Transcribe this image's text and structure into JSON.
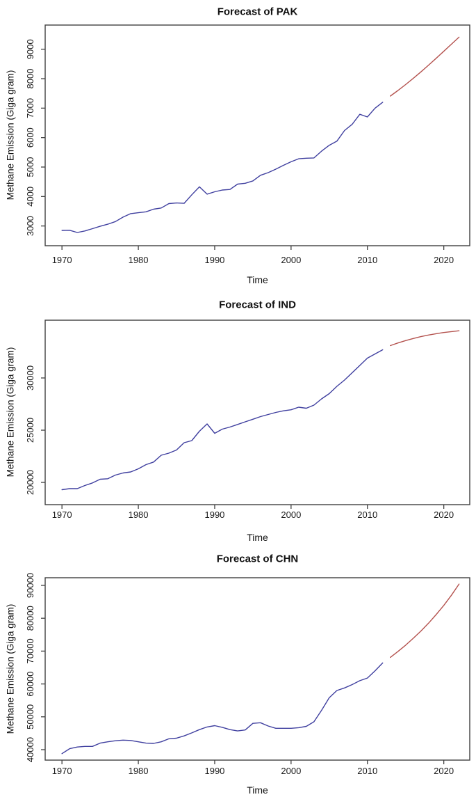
{
  "colors": {
    "observed_line": "#3f3f9f",
    "forecast_line": "#b4524e",
    "axis": "#404040",
    "text": "#1a1a1a",
    "background": "#ffffff"
  },
  "chart_data": [
    {
      "type": "line",
      "title": "Forecast of PAK",
      "xlabel": "Time",
      "ylabel": "Methane Emission (Giga gram)",
      "x_ticks": [
        "1970",
        "1980",
        "1990",
        "2000",
        "2010",
        "2020"
      ],
      "y_ticks": [
        "3000",
        "4000",
        "5000",
        "6000",
        "7000",
        "8000",
        "9000"
      ],
      "x_tick_values": [
        1970,
        1980,
        1990,
        2000,
        2010,
        2020
      ],
      "y_tick_values": [
        3000,
        4000,
        5000,
        6000,
        7000,
        8000,
        9000
      ],
      "xlim": [
        1967.8,
        2023.4
      ],
      "ylim": [
        2330,
        9820
      ],
      "grid": false,
      "legend": "none",
      "series": [
        {
          "name": "observed",
          "color": "#3f3f9f",
          "start_year": 1970,
          "values": [
            2850,
            2855,
            2780,
            2830,
            2910,
            2990,
            3060,
            3150,
            3300,
            3420,
            3450,
            3480,
            3570,
            3610,
            3760,
            3780,
            3770,
            4060,
            4330,
            4080,
            4160,
            4220,
            4240,
            4420,
            4450,
            4530,
            4720,
            4810,
            4930,
            5060,
            5180,
            5280,
            5300,
            5310,
            5540,
            5740,
            5880,
            6240,
            6450,
            6790,
            6700,
            7000,
            7200
          ]
        },
        {
          "name": "forecast",
          "color": "#b4524e",
          "start_year": 2013,
          "values": [
            7410,
            7600,
            7800,
            8010,
            8230,
            8460,
            8690,
            8930,
            9170,
            9410
          ]
        }
      ]
    },
    {
      "type": "line",
      "title": "Forecast of IND",
      "xlabel": "Time",
      "ylabel": "Methane Emission (Giga gram)",
      "x_ticks": [
        "1970",
        "1980",
        "1990",
        "2000",
        "2010",
        "2020"
      ],
      "y_ticks": [
        "20000",
        "25000",
        "30000"
      ],
      "x_tick_values": [
        1970,
        1980,
        1990,
        2000,
        2010,
        2020
      ],
      "y_tick_values": [
        20000,
        25000,
        30000
      ],
      "xlim": [
        1967.8,
        2023.4
      ],
      "ylim": [
        17870,
        35530
      ],
      "grid": false,
      "legend": "none",
      "series": [
        {
          "name": "observed",
          "color": "#3f3f9f",
          "start_year": 1970,
          "values": [
            19300,
            19400,
            19400,
            19700,
            19950,
            20300,
            20350,
            20700,
            20900,
            21000,
            21300,
            21700,
            21950,
            22600,
            22800,
            23100,
            23800,
            24000,
            24900,
            25600,
            24700,
            25100,
            25300,
            25550,
            25800,
            26050,
            26300,
            26500,
            26700,
            26850,
            26950,
            27200,
            27100,
            27400,
            28000,
            28500,
            29200,
            29800,
            30500,
            31200,
            31900,
            32300,
            32700
          ]
        },
        {
          "name": "forecast",
          "color": "#b4524e",
          "start_year": 2013,
          "values": [
            33100,
            33350,
            33580,
            33780,
            33960,
            34110,
            34240,
            34350,
            34440,
            34520
          ]
        }
      ]
    },
    {
      "type": "line",
      "title": "Forecast of CHN",
      "xlabel": "Time",
      "ylabel": "Methane Emission (Giga gram)",
      "x_ticks": [
        "1970",
        "1980",
        "1990",
        "2000",
        "2010",
        "2020"
      ],
      "y_ticks": [
        "40000",
        "50000",
        "60000",
        "70000",
        "80000",
        "90000"
      ],
      "x_tick_values": [
        1970,
        1980,
        1990,
        2000,
        2010,
        2020
      ],
      "y_tick_values": [
        40000,
        50000,
        60000,
        70000,
        80000,
        90000
      ],
      "xlim": [
        1967.8,
        2023.4
      ],
      "ylim": [
        36820,
        92330
      ],
      "grid": false,
      "legend": "none",
      "series": [
        {
          "name": "observed",
          "color": "#3f3f9f",
          "start_year": 1970,
          "values": [
            38800,
            40300,
            40800,
            41000,
            41000,
            42000,
            42400,
            42700,
            42900,
            42800,
            42400,
            42000,
            41900,
            42400,
            43300,
            43500,
            44200,
            45100,
            46100,
            46900,
            47300,
            46800,
            46100,
            45700,
            46000,
            48000,
            48200,
            47200,
            46500,
            46500,
            46500,
            46700,
            47100,
            48500,
            52000,
            55800,
            58000,
            58800,
            59800,
            61000,
            61800,
            64000,
            66400
          ]
        },
        {
          "name": "forecast",
          "color": "#b4524e",
          "start_year": 2013,
          "values": [
            68100,
            69900,
            71800,
            73900,
            76100,
            78500,
            81100,
            83900,
            87000,
            90400
          ]
        }
      ]
    }
  ]
}
